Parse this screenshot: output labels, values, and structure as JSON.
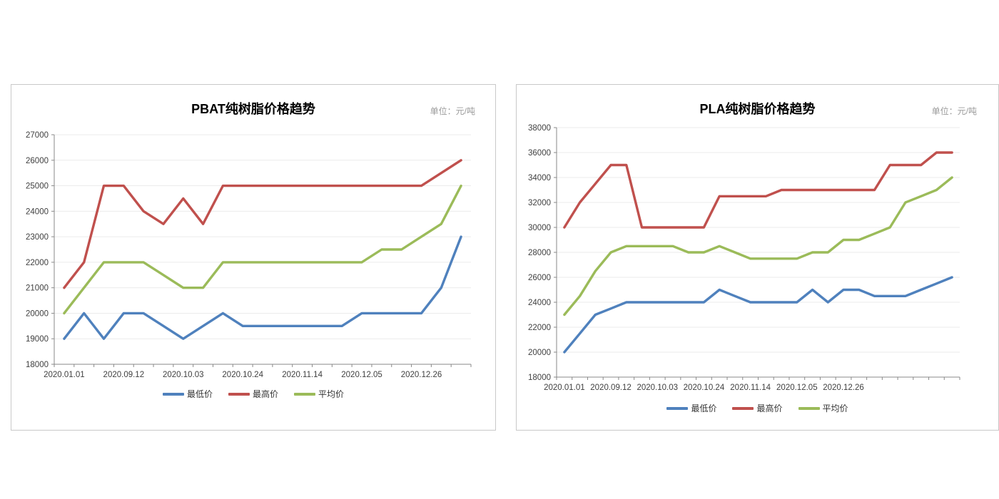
{
  "charts": [
    {
      "title": "PBAT纯树脂价格趋势",
      "unit": "单位：元/吨"
    },
    {
      "title": "PLA纯树脂价格趋势",
      "unit": "单位：元/吨"
    }
  ],
  "chart_data": [
    {
      "type": "line",
      "title": "PBAT纯树脂价格趋势",
      "unit": "单位：元/吨",
      "ylim": [
        18000,
        27000
      ],
      "ystep": 1000,
      "grid": true,
      "legend_position": "bottom",
      "n_points": 21,
      "x_labels": [
        "2020.01.01",
        "2020.09.12",
        "2020.10.03",
        "2020.10.24",
        "2020.11.14",
        "2020.12.05",
        "2020.12.26"
      ],
      "x_label_indices": [
        0,
        3,
        6,
        9,
        12,
        15,
        18
      ],
      "series": [
        {
          "name": "最低价",
          "color": "#4F81BD",
          "values": [
            19000,
            20000,
            19000,
            20000,
            20000,
            19500,
            19000,
            19500,
            20000,
            19500,
            19500,
            19500,
            19500,
            19500,
            19500,
            20000,
            20000,
            20000,
            20000,
            21000,
            23000
          ]
        },
        {
          "name": "最高价",
          "color": "#C0504D",
          "values": [
            21000,
            22000,
            25000,
            25000,
            24000,
            23500,
            24500,
            23500,
            25000,
            25000,
            25000,
            25000,
            25000,
            25000,
            25000,
            25000,
            25000,
            25000,
            25000,
            25500,
            26000
          ]
        },
        {
          "name": "平均价",
          "color": "#9BBB59",
          "values": [
            20000,
            21000,
            22000,
            22000,
            22000,
            21500,
            21000,
            21000,
            22000,
            22000,
            22000,
            22000,
            22000,
            22000,
            22000,
            22000,
            22500,
            22500,
            23000,
            23500,
            25000
          ]
        }
      ]
    },
    {
      "type": "line",
      "title": "PLA纯树脂价格趋势",
      "unit": "单位：元/吨",
      "ylim": [
        18000,
        38000
      ],
      "ystep": 2000,
      "grid": true,
      "legend_position": "bottom",
      "n_points": 26,
      "x_labels": [
        "2020.01.01",
        "2020.09.12",
        "2020.10.03",
        "2020.10.24",
        "2020.11.14",
        "2020.12.05",
        "2020.12.26"
      ],
      "x_label_indices": [
        0,
        3,
        6,
        9,
        12,
        15,
        18
      ],
      "series": [
        {
          "name": "最低价",
          "color": "#4F81BD",
          "values": [
            20000,
            21500,
            23000,
            23500,
            24000,
            24000,
            24000,
            24000,
            24000,
            24000,
            25000,
            24500,
            24000,
            24000,
            24000,
            24000,
            25000,
            24000,
            25000,
            25000,
            24500,
            24500,
            24500,
            25000,
            25500,
            26000
          ]
        },
        {
          "name": "最高价",
          "color": "#C0504D",
          "values": [
            30000,
            32000,
            33500,
            35000,
            35000,
            30000,
            30000,
            30000,
            30000,
            30000,
            32500,
            32500,
            32500,
            32500,
            33000,
            33000,
            33000,
            33000,
            33000,
            33000,
            33000,
            35000,
            35000,
            35000,
            36000,
            36000
          ]
        },
        {
          "name": "平均价",
          "color": "#9BBB59",
          "values": [
            23000,
            24500,
            26500,
            28000,
            28500,
            28500,
            28500,
            28500,
            28000,
            28000,
            28500,
            28000,
            27500,
            27500,
            27500,
            27500,
            28000,
            28000,
            29000,
            29000,
            29500,
            30000,
            32000,
            32500,
            33000,
            34000
          ]
        }
      ]
    }
  ]
}
